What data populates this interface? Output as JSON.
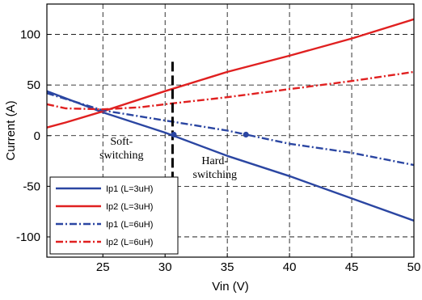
{
  "chart_data": {
    "type": "line",
    "title": "",
    "xlabel": "Vin (V)",
    "ylabel": "Current (A)",
    "xlim": [
      20.5,
      50
    ],
    "ylim": [
      -120,
      130
    ],
    "xticks": [
      25,
      30,
      35,
      40,
      45,
      50
    ],
    "yticks": [
      100,
      50,
      0,
      -50,
      -100
    ],
    "grid": true,
    "legend_position": "bottom-left",
    "series": [
      {
        "name": "Ip1 (L=3uH)",
        "color": "#2b46a2",
        "dash": "solid",
        "x": [
          20.5,
          25,
          30,
          35,
          40,
          45,
          50
        ],
        "y": [
          44,
          23,
          3,
          -20,
          -40,
          -62,
          -84
        ]
      },
      {
        "name": "Ip2 (L=3uH)",
        "color": "#e02020",
        "dash": "solid",
        "x": [
          20.5,
          22,
          25,
          28,
          30,
          35,
          40,
          45,
          50
        ],
        "y": [
          8,
          13,
          24,
          36,
          44,
          63,
          79,
          96,
          115
        ]
      },
      {
        "name": "Ip1 (L=6uH)",
        "color": "#2b46a2",
        "dash": "dashdot",
        "x": [
          20.5,
          25,
          30,
          35,
          40,
          45,
          50
        ],
        "y": [
          42,
          25,
          15,
          5,
          -8,
          -17,
          -29
        ]
      },
      {
        "name": "Ip2 (L=6uH)",
        "color": "#e02020",
        "dash": "dashdot",
        "x": [
          20.5,
          22,
          25,
          28,
          30,
          35,
          40,
          45,
          50
        ],
        "y": [
          31,
          27,
          26,
          28,
          31,
          38,
          46,
          54,
          63
        ]
      }
    ],
    "markers": [
      {
        "x": 30.7,
        "y": 1
      },
      {
        "x": 36.5,
        "y": 1
      }
    ],
    "boundary_line": {
      "x": 30.6,
      "y_from": 73,
      "y_to": -61
    },
    "annotations": [
      {
        "lines": [
          "Soft-",
          "switching"
        ],
        "x": 26.5,
        "y": -9
      },
      {
        "lines": [
          "Hard-",
          "switching"
        ],
        "x": 34,
        "y": -28
      }
    ]
  }
}
